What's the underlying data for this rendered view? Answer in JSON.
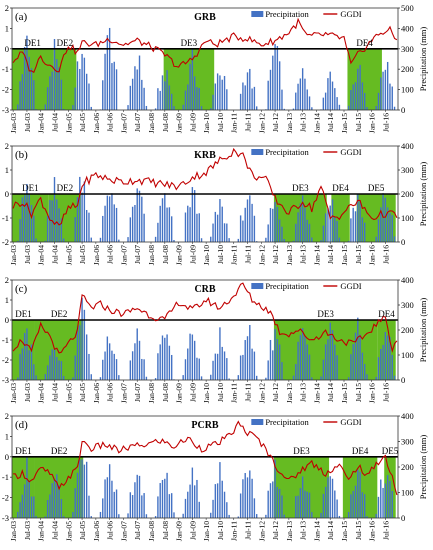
{
  "colors": {
    "precip": "#4472C4",
    "ggdi": "#C00000",
    "drought": "#66BB22",
    "axis": "#333333"
  },
  "chart_data": [
    {
      "panel": "(a)",
      "type": "bar+line",
      "title": "GRB",
      "legend": [
        "Precipitation",
        "GGDI"
      ],
      "legend_position": "top-right",
      "x_ticks": [
        "Jan-03",
        "Jul-03",
        "Jan-04",
        "Jul-04",
        "Jan-05",
        "Jul-05",
        "Jan-06",
        "Jul-06",
        "Jan-07",
        "Jul-07",
        "Jan-08",
        "Jul-08",
        "Jan-09",
        "Jul-09",
        "Jan-10",
        "Jul-10",
        "Jan-11",
        "Jul-11",
        "Jan-12",
        "Jul-12",
        "Jan-13",
        "Jul-13",
        "Jan-14",
        "Jul-14",
        "Jan-15",
        "Jul-15",
        "Jan-16",
        "Jul-16"
      ],
      "left_axis": {
        "ylim": [
          -3,
          2
        ],
        "ticks": [
          -3,
          -2,
          -1,
          0,
          1,
          2
        ]
      },
      "right_axis": {
        "label": "Precipitation (mm)",
        "ylim": [
          0,
          500
        ],
        "ticks": [
          0,
          100,
          200,
          300,
          400,
          500
        ]
      },
      "drought_events": [
        {
          "label": "DE1",
          "start": "Jan-03",
          "end": "Jul-04"
        },
        {
          "label": "DE2",
          "start": "Jul-04",
          "end": "May-05"
        },
        {
          "label": "DE3",
          "start": "Jul-08",
          "end": "May-10"
        },
        {
          "label": "DE4",
          "start": "Mar-15",
          "end": "Jun-16"
        }
      ],
      "ggdi_anchors": [
        [
          0,
          -0.6
        ],
        [
          4,
          -0.2
        ],
        [
          8,
          -1.2
        ],
        [
          12,
          -0.4
        ],
        [
          16,
          -0.8
        ],
        [
          20,
          -1.0
        ],
        [
          24,
          0.2
        ],
        [
          28,
          -0.2
        ],
        [
          30,
          0.3
        ],
        [
          36,
          0.2
        ],
        [
          42,
          0.5
        ],
        [
          48,
          0.2
        ],
        [
          54,
          0.4
        ],
        [
          60,
          0.1
        ],
        [
          66,
          -0.3
        ],
        [
          72,
          -0.9
        ],
        [
          78,
          -0.5
        ],
        [
          84,
          0.4
        ],
        [
          88,
          0.2
        ],
        [
          96,
          0.6
        ],
        [
          102,
          0.5
        ],
        [
          108,
          0.2
        ],
        [
          114,
          0.4
        ],
        [
          120,
          0.8
        ],
        [
          124,
          1.3
        ],
        [
          128,
          0.6
        ],
        [
          136,
          0.7
        ],
        [
          144,
          0.5
        ],
        [
          147,
          -0.8
        ],
        [
          150,
          -0.3
        ],
        [
          156,
          0.4
        ],
        [
          160,
          0.8
        ],
        [
          164,
          0.9
        ],
        [
          167,
          0.4
        ]
      ],
      "precip_peaks": [
        [
          6,
          410
        ],
        [
          18,
          350
        ],
        [
          30,
          390
        ],
        [
          42,
          480
        ],
        [
          54,
          340
        ],
        [
          66,
          240
        ],
        [
          78,
          300
        ],
        [
          90,
          270
        ],
        [
          102,
          260
        ],
        [
          114,
          390
        ],
        [
          126,
          230
        ],
        [
          138,
          240
        ],
        [
          150,
          280
        ],
        [
          162,
          320
        ]
      ]
    },
    {
      "panel": "(b)",
      "type": "bar+line",
      "title": "KRB",
      "legend": [
        "Precipitation",
        "GGDI"
      ],
      "legend_position": "top-right",
      "x_ticks": [
        "Jan-03",
        "Jul-03",
        "Jan-04",
        "Jul-04",
        "Jan-05",
        "Jul-05",
        "Jan-06",
        "Jul-06",
        "Jan-07",
        "Jul-07",
        "Jan-08",
        "Jul-08",
        "Jan-09",
        "Jul-09",
        "Jan-10",
        "Jul-10",
        "Jan-11",
        "Jul-11",
        "Jan-12",
        "Jul-12",
        "Jan-13",
        "Jul-13",
        "Jan-14",
        "Jul-14",
        "Jan-15",
        "Jul-15",
        "Jan-16",
        "Jul-16"
      ],
      "left_axis": {
        "ylim": [
          -2,
          2
        ],
        "ticks": [
          -2,
          -1,
          0,
          1,
          2
        ]
      },
      "right_axis": {
        "label": "Precipitation (mm)",
        "ylim": [
          0,
          400
        ],
        "ticks": [
          0,
          100,
          200,
          300,
          400
        ]
      },
      "drought_events": [
        {
          "label": "DE1",
          "start": "Jan-03",
          "end": "May-04"
        },
        {
          "label": "DE2",
          "start": "May-04",
          "end": "Jul-05"
        },
        {
          "label": "DE3",
          "start": "Jul-12",
          "end": "Jun-14"
        },
        {
          "label": "DE4",
          "start": "Aug-14",
          "end": "Apr-15"
        },
        {
          "label": "DE5",
          "start": "Jul-15",
          "end": "Dec-16"
        }
      ],
      "ggdi_anchors": [
        [
          0,
          -0.5
        ],
        [
          4,
          -0.3
        ],
        [
          8,
          -0.8
        ],
        [
          12,
          -0.2
        ],
        [
          16,
          -1.0
        ],
        [
          20,
          -1.4
        ],
        [
          24,
          -0.6
        ],
        [
          28,
          -0.5
        ],
        [
          30,
          0.4
        ],
        [
          36,
          0.8
        ],
        [
          42,
          0.6
        ],
        [
          48,
          0.5
        ],
        [
          54,
          0.6
        ],
        [
          60,
          0.5
        ],
        [
          66,
          0.4
        ],
        [
          72,
          0.3
        ],
        [
          78,
          0.7
        ],
        [
          84,
          0.9
        ],
        [
          90,
          1.4
        ],
        [
          96,
          1.8
        ],
        [
          100,
          1.6
        ],
        [
          104,
          0.8
        ],
        [
          110,
          0.6
        ],
        [
          114,
          -0.2
        ],
        [
          120,
          -0.8
        ],
        [
          126,
          -0.3
        ],
        [
          130,
          -0.6
        ],
        [
          134,
          0.3
        ],
        [
          138,
          -1.0
        ],
        [
          142,
          -0.9
        ],
        [
          146,
          -0.6
        ],
        [
          150,
          -0.3
        ],
        [
          156,
          -1.0
        ],
        [
          162,
          -0.8
        ],
        [
          167,
          -0.9
        ]
      ],
      "precip_peaks": [
        [
          6,
          300
        ],
        [
          18,
          280
        ],
        [
          30,
          370
        ],
        [
          42,
          320
        ],
        [
          54,
          310
        ],
        [
          66,
          260
        ],
        [
          78,
          280
        ],
        [
          90,
          200
        ],
        [
          102,
          250
        ],
        [
          114,
          240
        ],
        [
          126,
          240
        ],
        [
          138,
          240
        ],
        [
          150,
          250
        ],
        [
          162,
          260
        ]
      ]
    },
    {
      "panel": "(c)",
      "type": "bar+line",
      "title": "CRB",
      "legend": [
        "Precipitation",
        "GGDI"
      ],
      "legend_position": "top-right",
      "x_ticks": [
        "Jan-03",
        "Jul-03",
        "Jan-04",
        "Jul-04",
        "Jan-05",
        "Jul-05",
        "Jan-06",
        "Jul-06",
        "Jan-07",
        "Jul-07",
        "Jan-08",
        "Jul-08",
        "Jan-09",
        "Jul-09",
        "Jan-10",
        "Jul-10",
        "Jan-11",
        "Jul-11",
        "Jan-12",
        "Jul-12",
        "Jan-13",
        "Jul-13",
        "Jan-14",
        "Jul-14",
        "Jan-15",
        "Jul-15",
        "Jan-16",
        "Jul-16"
      ],
      "left_axis": {
        "ylim": [
          -3,
          2
        ],
        "ticks": [
          -3,
          -2,
          -1,
          0,
          1,
          2
        ]
      },
      "right_axis": {
        "label": "Precipitation (mm)",
        "ylim": [
          0,
          400
        ],
        "ticks": [
          0,
          100,
          200,
          300,
          400
        ]
      },
      "drought_events": [
        {
          "label": "DE1",
          "start": "Jan-03",
          "end": "Nov-03"
        },
        {
          "label": "DE2",
          "start": "Nov-03",
          "end": "Aug-05"
        },
        {
          "label": "DE3",
          "start": "Jul-12",
          "end": "Apr-16"
        },
        {
          "label": "DE4",
          "start": "Apr-16",
          "end": "Dec-16"
        }
      ],
      "ggdi_anchors": [
        [
          0,
          -1.4
        ],
        [
          4,
          -1.0
        ],
        [
          8,
          -1.6
        ],
        [
          12,
          -0.3
        ],
        [
          16,
          -0.8
        ],
        [
          20,
          -1.8
        ],
        [
          24,
          -1.2
        ],
        [
          28,
          -0.6
        ],
        [
          30,
          1.2
        ],
        [
          34,
          0.6
        ],
        [
          38,
          0.8
        ],
        [
          42,
          0.5
        ],
        [
          48,
          0.3
        ],
        [
          54,
          0.6
        ],
        [
          60,
          0.2
        ],
        [
          66,
          0.0
        ],
        [
          72,
          0.9
        ],
        [
          78,
          0.5
        ],
        [
          84,
          1.0
        ],
        [
          90,
          0.6
        ],
        [
          96,
          1.2
        ],
        [
          100,
          1.8
        ],
        [
          104,
          1.0
        ],
        [
          108,
          0.7
        ],
        [
          112,
          0.4
        ],
        [
          116,
          -0.6
        ],
        [
          120,
          -0.7
        ],
        [
          124,
          -0.5
        ],
        [
          130,
          -1.0
        ],
        [
          136,
          -0.6
        ],
        [
          142,
          -1.0
        ],
        [
          148,
          -1.2
        ],
        [
          154,
          -0.7
        ],
        [
          158,
          -0.2
        ],
        [
          162,
          0.1
        ],
        [
          165,
          -1.4
        ],
        [
          167,
          -1.0
        ]
      ],
      "precip_peaks": [
        [
          6,
          240
        ],
        [
          18,
          200
        ],
        [
          30,
          370
        ],
        [
          42,
          250
        ],
        [
          54,
          220
        ],
        [
          66,
          240
        ],
        [
          78,
          250
        ],
        [
          90,
          220
        ],
        [
          102,
          280
        ],
        [
          114,
          260
        ],
        [
          126,
          250
        ],
        [
          138,
          250
        ],
        [
          150,
          250
        ],
        [
          162,
          270
        ]
      ]
    },
    {
      "panel": "(d)",
      "type": "bar+line",
      "title": "PCRB",
      "legend": [
        "Precipitation",
        "GGDI"
      ],
      "legend_position": "top-right",
      "x_ticks": [
        "Jan-03",
        "Jul-03",
        "Jan-04",
        "Jul-04",
        "Jan-05",
        "Jul-05",
        "Jan-06",
        "Jul-06",
        "Jan-07",
        "Jul-07",
        "Jan-08",
        "Jul-08",
        "Jan-09",
        "Jul-09",
        "Jan-10",
        "Jul-10",
        "Jan-11",
        "Jul-11",
        "Jan-12",
        "Jul-12",
        "Jan-13",
        "Jul-13",
        "Jan-14",
        "Jul-14",
        "Jan-15",
        "Jul-15",
        "Jan-16",
        "Jul-16"
      ],
      "left_axis": {
        "ylim": [
          -3,
          2
        ],
        "ticks": [
          -3,
          -2,
          -1,
          0,
          1,
          2
        ]
      },
      "right_axis": {
        "label": "Precipitation (mm)",
        "ylim": [
          0,
          400
        ],
        "ticks": [
          0,
          100,
          200,
          300,
          400
        ]
      },
      "drought_events": [
        {
          "label": "DE1",
          "start": "Jan-03",
          "end": "Nov-03"
        },
        {
          "label": "DE2",
          "start": "Nov-03",
          "end": "Aug-05"
        },
        {
          "label": "DE3",
          "start": "Jul-12",
          "end": "Jul-14"
        },
        {
          "label": "DE4",
          "start": "Jan-15",
          "end": "Apr-16"
        },
        {
          "label": "DE5",
          "start": "Jul-16",
          "end": "Dec-16"
        }
      ],
      "ggdi_anchors": [
        [
          0,
          -1.0
        ],
        [
          4,
          -0.8
        ],
        [
          8,
          -1.2
        ],
        [
          12,
          -0.6
        ],
        [
          16,
          -0.8
        ],
        [
          20,
          -1.6
        ],
        [
          24,
          -1.0
        ],
        [
          28,
          -0.6
        ],
        [
          30,
          0.8
        ],
        [
          34,
          0.4
        ],
        [
          40,
          0.6
        ],
        [
          46,
          0.3
        ],
        [
          52,
          0.5
        ],
        [
          58,
          0.6
        ],
        [
          64,
          0.8
        ],
        [
          70,
          0.5
        ],
        [
          76,
          0.9
        ],
        [
          82,
          0.4
        ],
        [
          88,
          0.6
        ],
        [
          94,
          1.0
        ],
        [
          98,
          1.6
        ],
        [
          102,
          1.2
        ],
        [
          106,
          0.9
        ],
        [
          110,
          0.4
        ],
        [
          114,
          -0.4
        ],
        [
          120,
          -1.2
        ],
        [
          126,
          -0.6
        ],
        [
          130,
          -0.3
        ],
        [
          136,
          -0.8
        ],
        [
          142,
          -0.4
        ],
        [
          146,
          -1.2
        ],
        [
          150,
          -0.4
        ],
        [
          154,
          -1.0
        ],
        [
          158,
          -0.3
        ],
        [
          162,
          0.0
        ],
        [
          165,
          -1.0
        ],
        [
          167,
          -1.8
        ]
      ],
      "precip_peaks": [
        [
          6,
          240
        ],
        [
          18,
          220
        ],
        [
          30,
          350
        ],
        [
          42,
          260
        ],
        [
          54,
          250
        ],
        [
          66,
          230
        ],
        [
          78,
          250
        ],
        [
          90,
          230
        ],
        [
          102,
          260
        ],
        [
          114,
          240
        ],
        [
          126,
          230
        ],
        [
          138,
          220
        ],
        [
          150,
          230
        ],
        [
          162,
          240
        ]
      ]
    }
  ]
}
